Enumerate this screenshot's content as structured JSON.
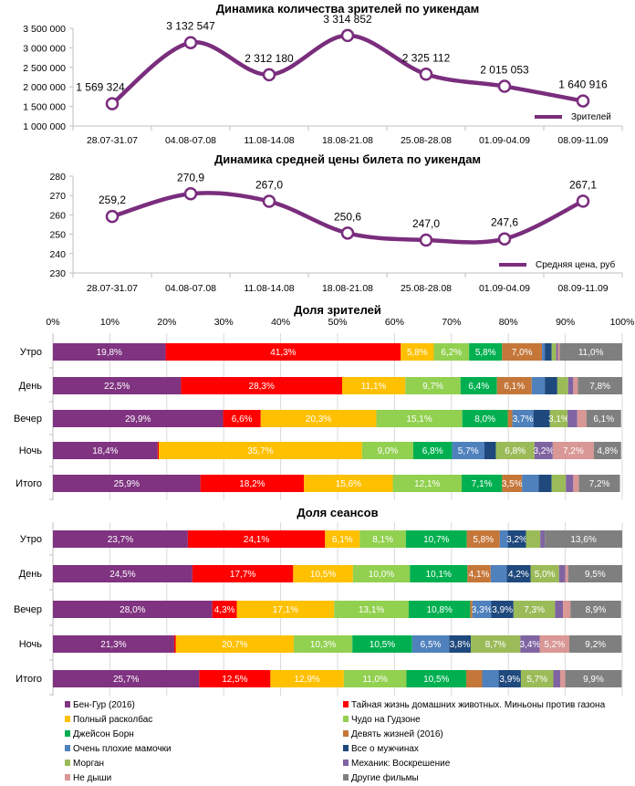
{
  "colors": {
    "line": "#7A2D7D",
    "series": [
      "#7F3380",
      "#FF0000",
      "#FFC000",
      "#92D050",
      "#00B050",
      "#C5773A",
      "#4F81BD",
      "#1F497D",
      "#9BBB59",
      "#8064A2",
      "#D99795",
      "#7F7F7F"
    ]
  },
  "chart_data": [
    {
      "type": "line",
      "title": "Динамика количества зрителей по уикендам",
      "categories": [
        "28.07-31.07",
        "04.08-07.08",
        "11.08-14.08",
        "18.08-21.08",
        "25.08-28.08",
        "01.09-04.09",
        "08.09-11.09"
      ],
      "series": [
        {
          "name": "Зрителей",
          "values": [
            1569324,
            3132547,
            2312180,
            3314852,
            2325112,
            2015053,
            1640916
          ]
        }
      ],
      "data_labels": [
        "1 569 324",
        "3 132 547",
        "2 312 180",
        "3 314 852",
        "2 325 112",
        "2 015 053",
        "1 640 916"
      ],
      "yticks": [
        "1 000 000",
        "1 500 000",
        "2 000 000",
        "2 500 000",
        "3 000 000",
        "3 500 000"
      ],
      "ylim": [
        1000000,
        3500000
      ],
      "legend": "bottom-right",
      "grid": false
    },
    {
      "type": "line",
      "title": "Динамика средней цены билета по уикендам",
      "categories": [
        "28.07-31.07",
        "04.08-07.08",
        "11.08-14.08",
        "18.08-21.08",
        "25.08-28.08",
        "01.09-04.09",
        "08.09-11.09"
      ],
      "series": [
        {
          "name": "Средняя цена, руб",
          "values": [
            259.2,
            270.9,
            267.0,
            250.6,
            247.0,
            247.6,
            267.1
          ]
        }
      ],
      "data_labels": [
        "259,2",
        "270,9",
        "267,0",
        "250,6",
        "247,0",
        "247,6",
        "267,1"
      ],
      "yticks": [
        "230",
        "240",
        "250",
        "260",
        "270",
        "280"
      ],
      "ylim": [
        230,
        280
      ],
      "legend": "bottom-right",
      "grid": false
    },
    {
      "type": "bar",
      "stacked": "percent",
      "orientation": "horizontal",
      "title": "Доля зрителей",
      "categories": [
        "Утро",
        "День",
        "Вечер",
        "Ночь",
        "Итого"
      ],
      "xticks": [
        "0%",
        "10%",
        "20%",
        "30%",
        "40%",
        "50%",
        "60%",
        "70%",
        "80%",
        "90%",
        "100%"
      ],
      "xlim": [
        0,
        100
      ],
      "series_values": [
        [
          19.8,
          41.3,
          5.8,
          6.2,
          5.8,
          7.0,
          0.5,
          1.2,
          0.8,
          0.3,
          0.3,
          11.0
        ],
        [
          22.5,
          28.3,
          11.1,
          9.7,
          6.4,
          6.1,
          2.3,
          2.2,
          1.9,
          0.9,
          0.8,
          7.8
        ],
        [
          29.9,
          6.6,
          20.3,
          15.1,
          8.0,
          0.8,
          3.7,
          2.9,
          3.1,
          1.7,
          1.6,
          6.1
        ],
        [
          18.4,
          0.2,
          35.7,
          9.0,
          6.8,
          0.0,
          5.7,
          2.0,
          6.8,
          3.2,
          7.2,
          4.8
        ],
        [
          25.9,
          18.2,
          15.6,
          12.1,
          7.1,
          3.5,
          2.9,
          2.3,
          2.5,
          1.3,
          1.0,
          7.2
        ]
      ]
    },
    {
      "type": "bar",
      "stacked": "percent",
      "orientation": "horizontal",
      "title": "Доля сеансов",
      "categories": [
        "Утро",
        "День",
        "Вечер",
        "Ночь",
        "Итого"
      ],
      "xlim": [
        0,
        100
      ],
      "series_values": [
        [
          23.7,
          24.1,
          6.1,
          8.1,
          10.7,
          5.8,
          1.4,
          3.2,
          2.5,
          0.8,
          0.0,
          13.6
        ],
        [
          24.5,
          17.7,
          10.5,
          10.0,
          10.1,
          4.1,
          2.8,
          4.2,
          5.0,
          1.1,
          0.5,
          9.5
        ],
        [
          28.0,
          4.3,
          17.1,
          13.1,
          10.8,
          0.4,
          3.3,
          3.9,
          7.3,
          1.4,
          1.3,
          8.9
        ],
        [
          21.3,
          0.3,
          20.7,
          10.3,
          10.5,
          0.0,
          6.5,
          3.8,
          8.7,
          3.4,
          5.2,
          9.2
        ],
        [
          25.7,
          12.5,
          12.9,
          11.0,
          10.5,
          2.8,
          2.9,
          3.9,
          5.7,
          1.2,
          0.9,
          9.9
        ]
      ]
    }
  ],
  "legend": [
    "Бен-Гур (2016)",
    "Тайная жизнь домашних животных. Миньоны против газона",
    "Полный расколбас",
    "Чудо на Гудзоне",
    "Джейсон Борн",
    "Девять жизней (2016)",
    "Очень плохие мамочки",
    "Все о мужчинах",
    "Морган",
    "Механик: Воскрешение",
    "Не дыши",
    "Другие фильмы"
  ]
}
